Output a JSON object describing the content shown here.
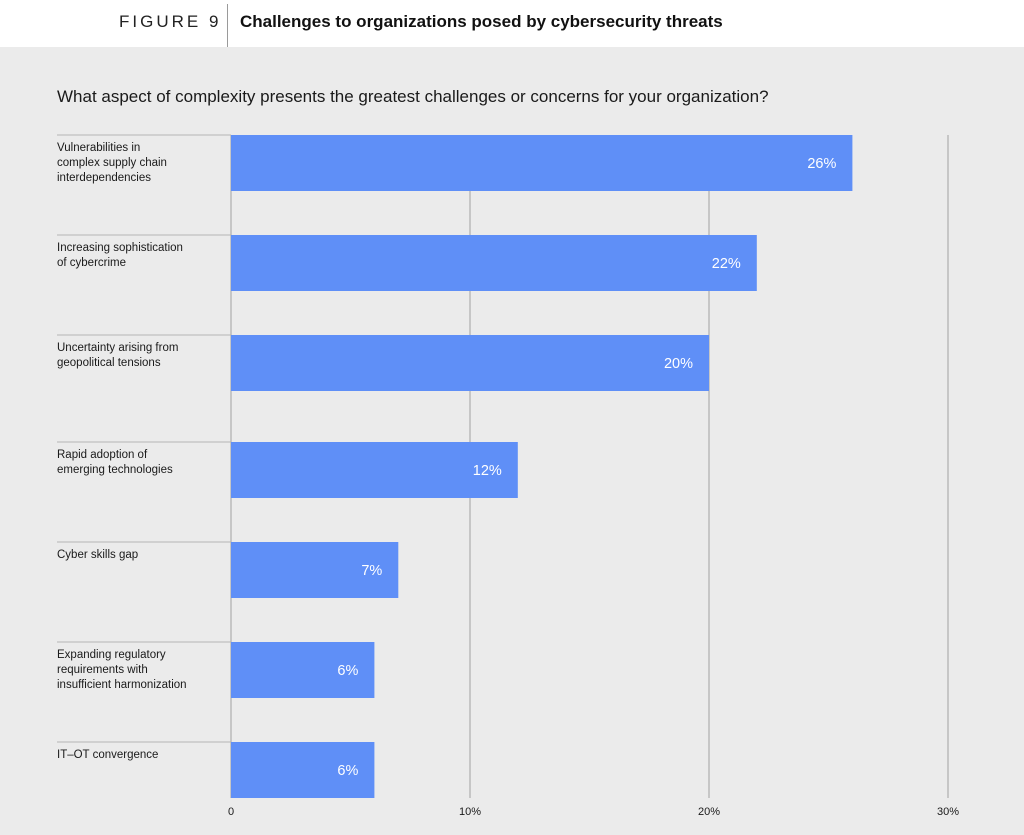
{
  "figure": {
    "label": "FIGURE 9",
    "title": "Challenges to organizations posed by cybersecurity threats"
  },
  "question": "What aspect of complexity presents the greatest challenges or concerns for your organization?",
  "colors": {
    "bar": "#5f8ff7",
    "panel": "#ebebeb",
    "gridline": "#a0a0a0",
    "separator": "#b5b5b5"
  },
  "chart_data": {
    "type": "bar",
    "orientation": "horizontal",
    "categories": [
      [
        "Vulnerabilities in",
        "complex supply chain",
        "interdependencies"
      ],
      [
        "Increasing sophistication",
        "of cybercrime"
      ],
      [
        "Uncertainty arising from",
        "geopolitical tensions"
      ],
      [
        "Rapid adoption of",
        "emerging technologies"
      ],
      [
        "Cyber skills gap"
      ],
      [
        "Expanding regulatory",
        "requirements with",
        "insufficient harmonization"
      ],
      [
        "IT–OT convergence"
      ]
    ],
    "values": [
      26,
      22,
      20,
      12,
      7,
      6,
      6
    ],
    "value_labels": [
      "26%",
      "22%",
      "20%",
      "12%",
      "7%",
      "6%",
      "6%"
    ],
    "xlim": [
      0,
      30
    ],
    "xticks": [
      0,
      10,
      20,
      30
    ],
    "xtick_labels": [
      "0",
      "10%",
      "20%",
      "30%"
    ],
    "grid": true,
    "title": "",
    "xlabel": "",
    "ylabel": ""
  }
}
